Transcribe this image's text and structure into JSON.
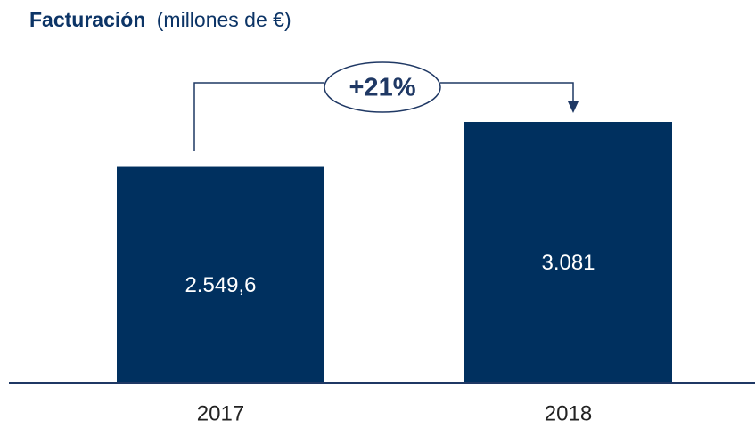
{
  "chart_data": {
    "type": "bar",
    "title": "Facturación",
    "subtitle": "(millones de €)",
    "categories": [
      "2017",
      "2018"
    ],
    "values": [
      2549.6,
      3081
    ],
    "value_labels": [
      "2.549,6",
      "3.081"
    ],
    "color": "#00305f",
    "annotation": "+21%"
  }
}
